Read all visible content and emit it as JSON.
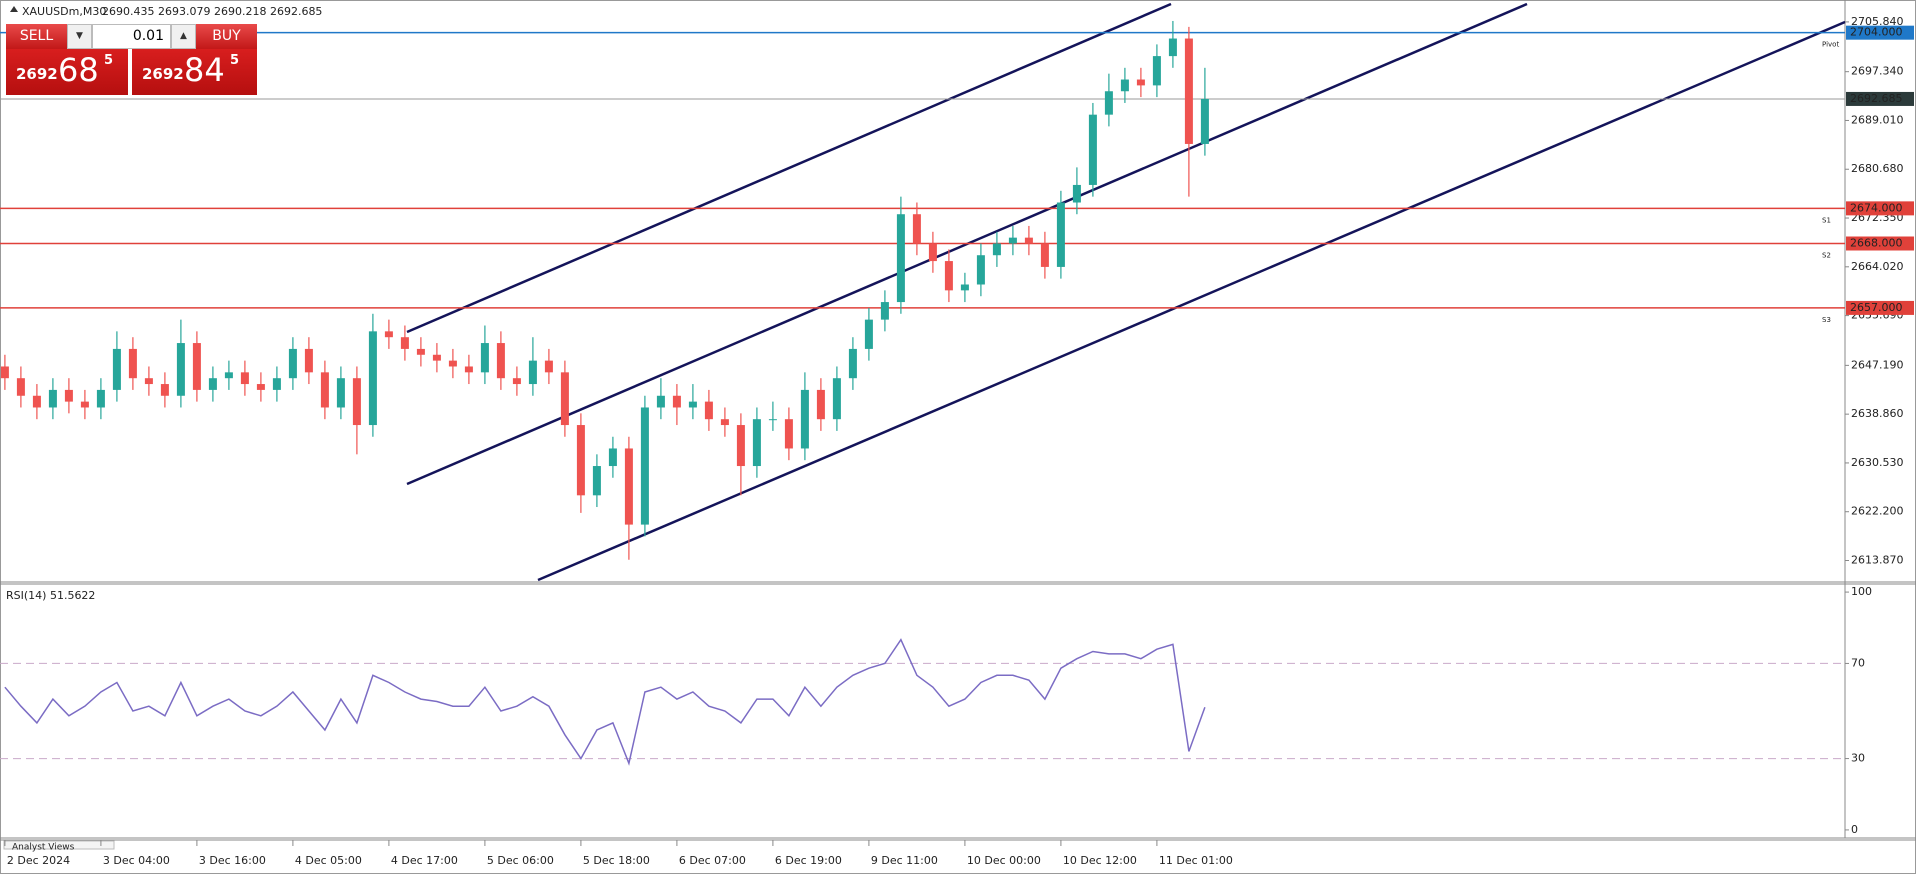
{
  "chart_data": {
    "type": "candlestick",
    "title": "XAUUSDm,M30",
    "quote": "2690.435 2693.079 2690.218 2692.685",
    "up_color": "#26a69a",
    "down_color": "#ef5350",
    "categories": [
      "2 Dec 2024",
      null,
      null,
      null,
      null,
      null,
      "3 Dec 04:00",
      null,
      null,
      null,
      null,
      null,
      "3 Dec 16:00",
      null,
      null,
      null,
      null,
      null,
      "4 Dec 05:00",
      null,
      null,
      null,
      null,
      null,
      "4 Dec 17:00",
      null,
      null,
      null,
      null,
      null,
      "5 Dec 06:00",
      null,
      null,
      null,
      null,
      null,
      "5 Dec 18:00",
      null,
      null,
      null,
      null,
      null,
      "6 Dec 07:00",
      null,
      null,
      null,
      null,
      null,
      "6 Dec 19:00",
      null,
      null,
      null,
      null,
      null,
      "9 Dec 11:00",
      null,
      null,
      null,
      null,
      null,
      "10 Dec 00:00",
      null,
      null,
      null,
      null,
      null,
      "10 Dec 12:00",
      null,
      null,
      null,
      null,
      null,
      "11 Dec 01:00",
      null,
      null,
      null
    ],
    "open": [
      2647,
      2645,
      2642,
      2640,
      2643,
      2641,
      2640,
      2643,
      2650,
      2645,
      2644,
      2642,
      2651,
      2643,
      2645,
      2646,
      2644,
      2643,
      2645,
      2650,
      2646,
      2640,
      2645,
      2637,
      2653,
      2652,
      2650,
      2649,
      2648,
      2647,
      2646,
      2651,
      2645,
      2644,
      2648,
      2646,
      2637,
      2625,
      2630,
      2633,
      2620,
      2640,
      2642,
      2640,
      2641,
      2638,
      2637,
      2630,
      2638,
      2638,
      2633,
      2643,
      2638,
      2645,
      2650,
      2655,
      2658,
      2673,
      2668,
      2665,
      2660,
      2661,
      2666,
      2668,
      2669,
      2668,
      2664,
      2675,
      2678,
      2690,
      2694,
      2696,
      2695,
      2700,
      2703,
      2685
    ],
    "high": [
      2649,
      2647,
      2644,
      2645,
      2645,
      2643,
      2645,
      2653,
      2652,
      2647,
      2646,
      2655,
      2653,
      2647,
      2648,
      2648,
      2646,
      2647,
      2652,
      2652,
      2648,
      2647,
      2647,
      2656,
      2655,
      2654,
      2652,
      2651,
      2650,
      2649,
      2654,
      2653,
      2647,
      2652,
      2650,
      2648,
      2639,
      2632,
      2635,
      2635,
      2642,
      2645,
      2644,
      2644,
      2643,
      2640,
      2639,
      2640,
      2641,
      2640,
      2646,
      2645,
      2647,
      2652,
      2657,
      2660,
      2676,
      2675,
      2670,
      2667,
      2663,
      2668,
      2670,
      2671,
      2671,
      2670,
      2677,
      2681,
      2692,
      2697,
      2698,
      2698,
      2702,
      2706,
      2705,
      2698
    ],
    "low": [
      2643,
      2640,
      2638,
      2638,
      2639,
      2638,
      2638,
      2641,
      2643,
      2642,
      2640,
      2640,
      2641,
      2641,
      2643,
      2642,
      2641,
      2641,
      2643,
      2644,
      2638,
      2638,
      2632,
      2635,
      2650,
      2648,
      2647,
      2646,
      2645,
      2644,
      2644,
      2643,
      2642,
      2642,
      2644,
      2635,
      2622,
      2623,
      2628,
      2614,
      2618,
      2638,
      2637,
      2638,
      2636,
      2635,
      2625,
      2628,
      2636,
      2631,
      2631,
      2636,
      2636,
      2643,
      2648,
      2653,
      2656,
      2666,
      2663,
      2658,
      2658,
      2659,
      2664,
      2666,
      2666,
      2662,
      2662,
      2673,
      2676,
      2688,
      2692,
      2693,
      2693,
      2698,
      2676,
      2683
    ],
    "close": [
      2645,
      2642,
      2640,
      2643,
      2641,
      2640,
      2643,
      2650,
      2645,
      2644,
      2642,
      2651,
      2643,
      2645,
      2646,
      2644,
      2643,
      2645,
      2650,
      2646,
      2640,
      2645,
      2637,
      2653,
      2652,
      2650,
      2649,
      2648,
      2647,
      2646,
      2651,
      2645,
      2644,
      2648,
      2646,
      2637,
      2625,
      2630,
      2633,
      2620,
      2640,
      2642,
      2640,
      2641,
      2638,
      2637,
      2630,
      2638,
      2638,
      2633,
      2643,
      2638,
      2645,
      2650,
      2655,
      2658,
      2673,
      2668,
      2665,
      2660,
      2661,
      2666,
      2668,
      2669,
      2668,
      2664,
      2675,
      2678,
      2690,
      2694,
      2696,
      2695,
      2700,
      2703,
      2685,
      2692.685
    ],
    "ylim": [
      2610.54,
      2709.58
    ],
    "yticks": [
      {
        "value": 2705.84,
        "label": "2705.840"
      },
      {
        "value": 2697.34,
        "label": "2697.340"
      },
      {
        "value": 2689.01,
        "label": "2689.010"
      },
      {
        "value": 2680.68,
        "label": "2680.680"
      },
      {
        "value": 2672.35,
        "label": "2672.350"
      },
      {
        "value": 2664.02,
        "label": "2664.020"
      },
      {
        "value": 2655.69,
        "label": "2655.690"
      },
      {
        "value": 2647.19,
        "label": "2647.190"
      },
      {
        "value": 2638.86,
        "label": "2638.860"
      },
      {
        "value": 2630.53,
        "label": "2630.530"
      },
      {
        "value": 2622.2,
        "label": "2622.200"
      },
      {
        "value": 2613.87,
        "label": "2613.870"
      }
    ],
    "levels": [
      {
        "value": 2704,
        "label": "2704.000",
        "tag": "Pivot",
        "color": "#1f78c8"
      },
      {
        "value": 2674,
        "label": "2674.000",
        "tag": "S1",
        "color": "#e0413a"
      },
      {
        "value": 2668,
        "label": "2668.000",
        "tag": "S2",
        "color": "#e0413a"
      },
      {
        "value": 2657,
        "label": "2657.000",
        "tag": "S3",
        "color": "#e0413a"
      }
    ],
    "current_price": 2692.685,
    "rsi": {
      "title": "RSI(14) 51.5622",
      "color": "#7b6cc4",
      "values": [
        60,
        52,
        45,
        55,
        48,
        52,
        58,
        62,
        50,
        52,
        48,
        62,
        48,
        52,
        55,
        50,
        48,
        52,
        58,
        50,
        42,
        55,
        45,
        65,
        62,
        58,
        55,
        54,
        52,
        52,
        60,
        50,
        52,
        56,
        52,
        40,
        30,
        42,
        45,
        28,
        58,
        60,
        55,
        58,
        52,
        50,
        45,
        55,
        55,
        48,
        60,
        52,
        60,
        65,
        68,
        70,
        80,
        65,
        60,
        52,
        55,
        62,
        65,
        65,
        63,
        55,
        68,
        72,
        75,
        74,
        74,
        72,
        76,
        78,
        33,
        51.5622
      ],
      "ylim": [
        -3.4,
        103.4
      ],
      "yticks": [
        100,
        70,
        30,
        0
      ],
      "levels": [
        70,
        30
      ]
    }
  },
  "trade_panel": {
    "sell": "SELL",
    "buy": "BUY",
    "volume": "0.01",
    "bid": {
      "big": "2692",
      "main": "68",
      "sup": "5"
    },
    "ask": {
      "big": "2692",
      "main": "84",
      "sup": "5"
    }
  },
  "footer": {
    "tab": "Analyst Views"
  }
}
